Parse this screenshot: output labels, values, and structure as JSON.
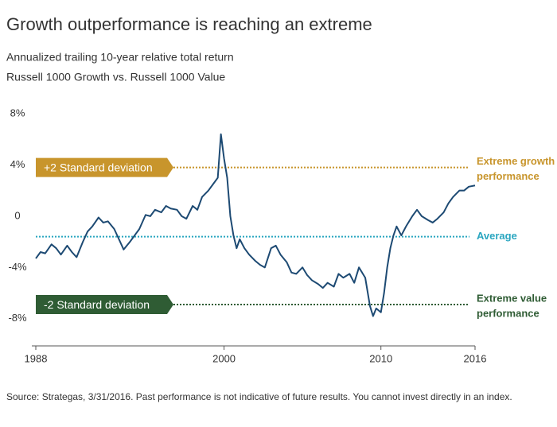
{
  "chart_data": {
    "type": "line",
    "title": "Growth outperformance is reaching an extreme",
    "subtitle": [
      "Annualized trailing 10-year relative total return",
      "Russell 1000 Growth vs. Russell 1000 Value"
    ],
    "source": "Source: Strategas, 3/31/2016. Past performance is not indicative of future results. You cannot invest directly in an index.",
    "line_color": "#1d4a73",
    "x": [
      1988.0,
      1988.3,
      1988.6,
      1989.0,
      1989.3,
      1989.6,
      1990.0,
      1990.3,
      1990.6,
      1991.0,
      1991.3,
      1991.6,
      1992.0,
      1992.3,
      1992.6,
      1993.0,
      1993.3,
      1993.6,
      1994.0,
      1994.3,
      1994.6,
      1995.0,
      1995.3,
      1995.6,
      1996.0,
      1996.3,
      1996.6,
      1997.0,
      1997.3,
      1997.6,
      1998.0,
      1998.3,
      1998.6,
      1999.0,
      1999.3,
      1999.6,
      1999.8,
      2000.0,
      2000.2,
      2000.4,
      2000.6,
      2000.8,
      2001.0,
      2001.3,
      2001.6,
      2002.0,
      2002.3,
      2002.6,
      2003.0,
      2003.3,
      2003.6,
      2004.0,
      2004.3,
      2004.6,
      2005.0,
      2005.3,
      2005.6,
      2006.0,
      2006.3,
      2006.6,
      2007.0,
      2007.3,
      2007.6,
      2008.0,
      2008.3,
      2008.6,
      2009.0,
      2009.3,
      2009.5,
      2009.7,
      2010.0,
      2010.2,
      2010.4,
      2010.6,
      2010.8,
      2011.0,
      2011.3,
      2011.6,
      2012.0,
      2012.3,
      2012.6,
      2013.0,
      2013.3,
      2013.6,
      2014.0,
      2014.3,
      2014.6,
      2015.0,
      2015.3,
      2015.6,
      2016.0
    ],
    "values": [
      -3.3,
      -2.8,
      -2.9,
      -2.2,
      -2.5,
      -3.0,
      -2.3,
      -2.8,
      -3.2,
      -2.0,
      -1.2,
      -0.8,
      -0.1,
      -0.5,
      -0.4,
      -1.0,
      -1.8,
      -2.6,
      -2.0,
      -1.5,
      -1.0,
      0.1,
      0.0,
      0.5,
      0.3,
      0.8,
      0.6,
      0.5,
      0.0,
      -0.2,
      0.8,
      0.5,
      1.5,
      2.0,
      2.5,
      3.0,
      6.4,
      4.5,
      3.0,
      0.0,
      -1.5,
      -2.5,
      -1.8,
      -2.5,
      -3.0,
      -3.5,
      -3.8,
      -4.0,
      -2.5,
      -2.3,
      -3.0,
      -3.6,
      -4.4,
      -4.5,
      -4.0,
      -4.6,
      -5.0,
      -5.3,
      -5.6,
      -5.2,
      -5.5,
      -4.5,
      -4.8,
      -4.5,
      -5.2,
      -4.0,
      -4.8,
      -7.0,
      -7.8,
      -7.2,
      -7.5,
      -6.0,
      -4.0,
      -2.5,
      -1.5,
      -0.8,
      -1.5,
      -0.8,
      0.0,
      0.5,
      0.0,
      -0.3,
      -0.5,
      -0.2,
      0.3,
      1.0,
      1.5,
      2.0,
      2.0,
      2.3,
      2.4
    ],
    "xlim": [
      1988,
      2016
    ],
    "xticks": [
      1988,
      2000,
      2010,
      2016
    ],
    "ylim": [
      -10,
      8
    ],
    "yticks": [
      {
        "value": 8,
        "label": "8%"
      },
      {
        "value": 4,
        "label": "4%"
      },
      0,
      {
        "value": -4,
        "label": "-4%"
      },
      {
        "value": -8,
        "label": "-8%"
      }
    ],
    "reference_lines": [
      {
        "value": 3.8,
        "box_label": "+2 Standard deviation",
        "side_label": [
          "Extreme growth",
          "performance"
        ],
        "color": "#c8952c"
      },
      {
        "value": -1.6,
        "side_label": [
          "Average"
        ],
        "color": "#2aa6c0"
      },
      {
        "value": -6.9,
        "box_label": "-2 Standard deviation",
        "side_label": [
          "Extreme value",
          "performance"
        ],
        "color": "#2f5c34"
      }
    ]
  }
}
